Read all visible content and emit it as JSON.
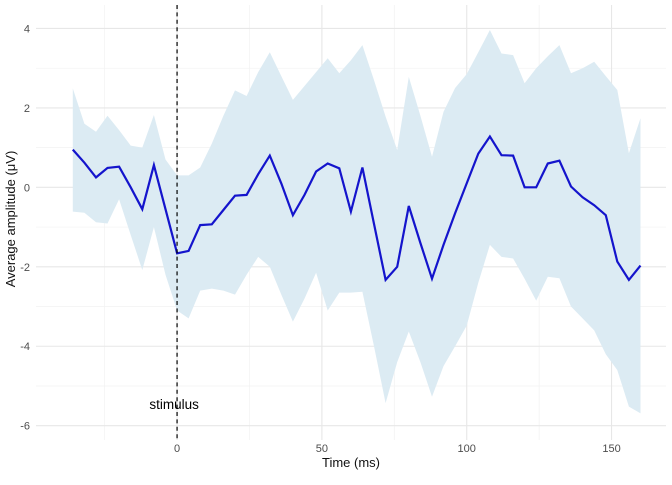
{
  "chart_data": {
    "type": "line",
    "title": "",
    "xlabel": "Time (ms)",
    "ylabel": "Average amplitude (μV)",
    "x_ticks": [
      0,
      50,
      100,
      150
    ],
    "x_minor_ticks": [
      -25,
      25,
      75,
      125
    ],
    "y_ticks": [
      -6,
      -4,
      -2,
      0,
      2,
      4
    ],
    "y_minor_ticks": [
      -5,
      -3,
      -1,
      1,
      3
    ],
    "xlim": [
      -48.7,
      168.8
    ],
    "ylim": [
      -6.36,
      4.59
    ],
    "grid": {
      "major_color": "#e7e7e7",
      "minor_color": "#f2f2f2",
      "show": true
    },
    "line_color": "#1414cc",
    "ribbon_fill": "#dcebf3",
    "vline": {
      "x": 0,
      "style": "dashed",
      "color": "#000000"
    },
    "annotation": {
      "text": "stimulus",
      "x": -1,
      "y": -5.58
    },
    "legend": "none",
    "x": [
      -36,
      -32,
      -28,
      -24,
      -20,
      -16,
      -12,
      -8,
      -4,
      0,
      4,
      8,
      12,
      16,
      20,
      24,
      28,
      32,
      36,
      40,
      44,
      48,
      52,
      56,
      60,
      64,
      68,
      72,
      76,
      80,
      84,
      88,
      92,
      96,
      100,
      104,
      108,
      112,
      116,
      120,
      124,
      128,
      132,
      136,
      140,
      144,
      148,
      152,
      156,
      160
    ],
    "series": [
      {
        "name": "mean_amplitude",
        "values": [
          0.95,
          0.62,
          0.25,
          0.49,
          0.52,
          0.0,
          -0.55,
          0.56,
          -0.55,
          -1.66,
          -1.6,
          -0.95,
          -0.93,
          -0.57,
          -0.21,
          -0.19,
          0.33,
          0.8,
          0.1,
          -0.7,
          -0.19,
          0.4,
          0.6,
          0.48,
          -0.61,
          0.5,
          -0.92,
          -2.33,
          -2.0,
          -0.47,
          -1.4,
          -2.3,
          -1.45,
          -0.65,
          0.1,
          0.85,
          1.28,
          0.81,
          0.8,
          0.0,
          0.0,
          0.6,
          0.67,
          0.02,
          -0.25,
          -0.45,
          -0.7,
          -1.87,
          -2.33,
          -1.97
        ]
      },
      {
        "name": "ci_upper",
        "values": [
          2.49,
          1.6,
          1.4,
          1.8,
          1.44,
          1.05,
          1.0,
          1.82,
          0.7,
          0.3,
          0.3,
          0.5,
          1.1,
          1.8,
          2.44,
          2.3,
          2.9,
          3.4,
          2.8,
          2.2,
          2.55,
          2.9,
          3.25,
          2.87,
          3.2,
          3.58,
          2.7,
          1.78,
          0.94,
          2.78,
          1.8,
          0.77,
          1.9,
          2.5,
          2.85,
          3.4,
          3.96,
          3.37,
          3.33,
          2.62,
          3.0,
          3.3,
          3.58,
          2.87,
          3.0,
          3.16,
          2.8,
          2.45,
          0.86,
          1.74
        ]
      },
      {
        "name": "ci_lower",
        "values": [
          -0.61,
          -0.64,
          -0.88,
          -0.91,
          -0.3,
          -1.2,
          -2.08,
          -1.0,
          -2.2,
          -3.1,
          -3.3,
          -2.6,
          -2.55,
          -2.6,
          -2.7,
          -2.2,
          -1.75,
          -2.0,
          -2.7,
          -3.38,
          -2.8,
          -2.15,
          -3.1,
          -2.65,
          -2.65,
          -2.63,
          -4.0,
          -5.43,
          -4.4,
          -3.63,
          -4.4,
          -5.27,
          -4.5,
          -4.0,
          -3.48,
          -2.4,
          -1.45,
          -1.75,
          -1.79,
          -2.3,
          -2.85,
          -2.25,
          -2.29,
          -3.0,
          -3.3,
          -3.6,
          -4.2,
          -4.6,
          -5.52,
          -5.69
        ]
      }
    ]
  }
}
